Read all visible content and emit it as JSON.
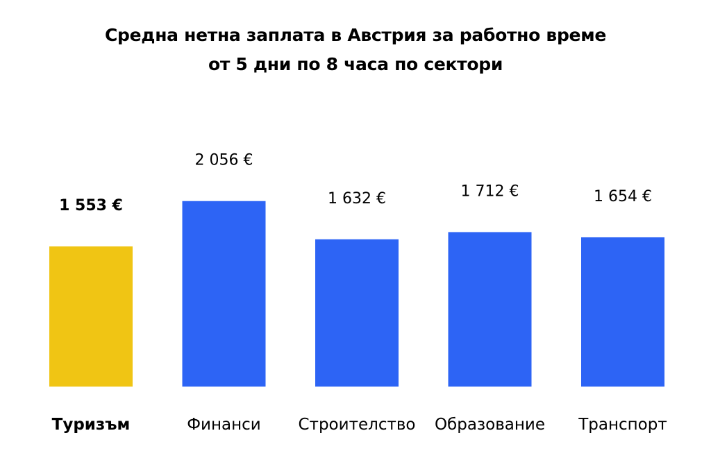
{
  "chart_data": {
    "type": "bar",
    "title": "Средна нетна заплата в Австрия за работно време\nот 5 дни по 8 часа по сектори",
    "title_lines": [
      "Средна нетна заплата в Австрия за работно време",
      "от 5 дни по 8 часа по сектори"
    ],
    "categories": [
      "Туризъм",
      "Финанси",
      "Строителство",
      "Образование",
      "Транспорт"
    ],
    "values": [
      1553,
      2056,
      1632,
      1712,
      1654
    ],
    "value_labels": [
      "1 553 €",
      "2 056 €",
      "1 632 €",
      "1 712 €",
      "1 654 €"
    ],
    "highlighted_category": "Туризъм",
    "unit": "€",
    "xlabel": "",
    "ylabel": "",
    "grid": false,
    "axes_visible": false,
    "colors": {
      "highlight": "#F0C514",
      "default": "#2D64F5",
      "text": "#000000",
      "background": "#FFFFFF"
    }
  }
}
